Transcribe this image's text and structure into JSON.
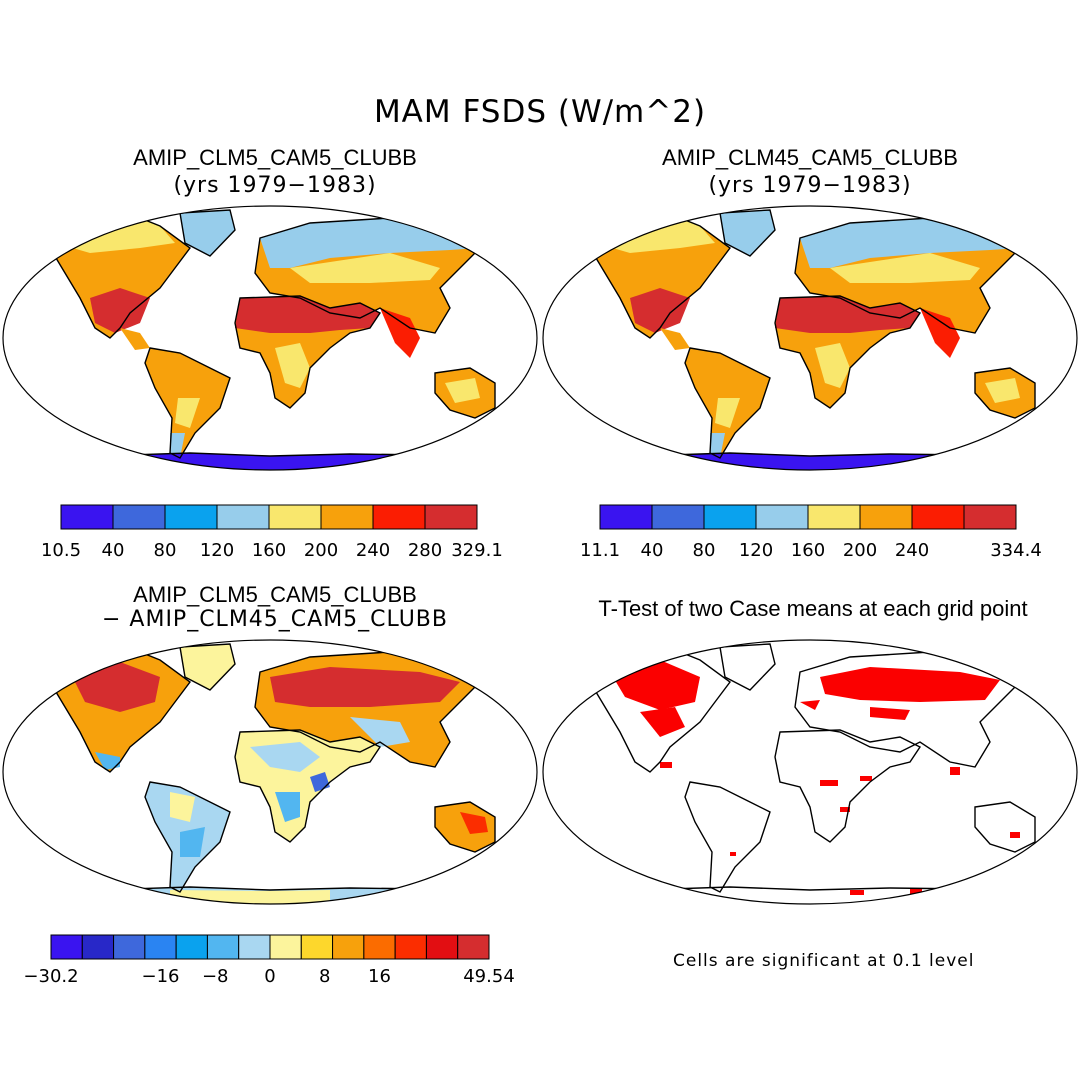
{
  "figure": {
    "title": "MAM FSDS (W/m^2)",
    "note": "Cells are significant at 0.1 level"
  },
  "panels": [
    {
      "id": "case1",
      "title": "AMIP_CLM5_CAM5_CLUBB",
      "subtitle": "(yrs 1979−1983)"
    },
    {
      "id": "case2",
      "title": "AMIP_CLM45_CAM5_CLUBB",
      "subtitle": "(yrs 1979−1983)"
    },
    {
      "id": "diff",
      "title": "AMIP_CLM5_CAM5_CLUBB",
      "subtitle": "− AMIP_CLM45_CAM5_CLUBB"
    },
    {
      "id": "ttest",
      "title": "T-Test of two Case means at each grid point",
      "subtitle": ""
    }
  ],
  "colorbars": {
    "case1": {
      "colors": [
        "#3a14f0",
        "#3e68dc",
        "#0aa2ee",
        "#97cdeb",
        "#f9e76d",
        "#f7a10c",
        "#fb1d02",
        "#d52d2f"
      ],
      "labels": [
        "10.5",
        "40",
        "80",
        "120",
        "160",
        "200",
        "240",
        "280",
        "329.1"
      ]
    },
    "case2": {
      "colors": [
        "#3a14f0",
        "#3e68dc",
        "#0aa2ee",
        "#97cdeb",
        "#f9e76d",
        "#f7a10c",
        "#fb1d02",
        "#d52d2f"
      ],
      "labels": [
        "11.1",
        "40",
        "80",
        "120",
        "160",
        "200",
        "240",
        "",
        "334.4"
      ]
    },
    "diff": {
      "colors": [
        "#3a14f0",
        "#2828c8",
        "#3e68dc",
        "#2a84f2",
        "#0aa2ee",
        "#52b6f0",
        "#a9d7f1",
        "#fcf49c",
        "#fdd72c",
        "#f7a10c",
        "#fb6c00",
        "#fb2d00",
        "#e20e12",
        "#d52d2f"
      ],
      "labels": [
        "−30.2",
        "",
        "−16",
        "−8",
        "0",
        "8",
        "16",
        "",
        "49.54"
      ]
    }
  }
}
